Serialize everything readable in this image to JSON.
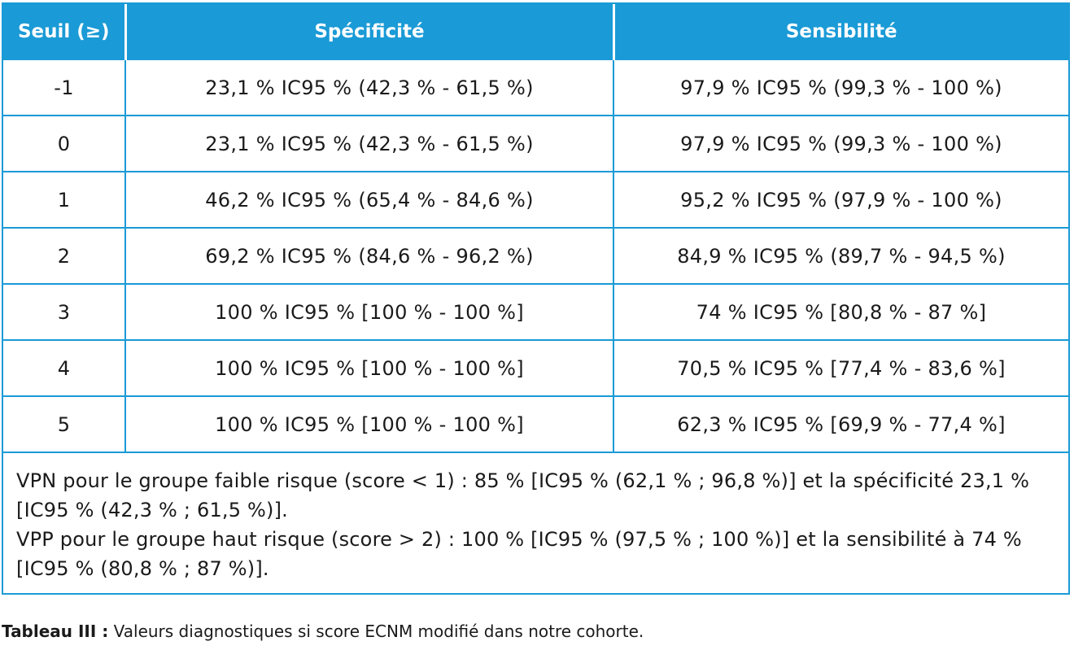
{
  "table": {
    "headers": [
      "Seuil (≥)",
      "Spécificité",
      "Sensibilité"
    ],
    "rows": [
      [
        "-1",
        "23,1 % IC95 % (42,3 % - 61,5 %)",
        "97,9 % IC95 % (99,3 % - 100 %)"
      ],
      [
        "0",
        "23,1 % IC95 % (42,3 % - 61,5 %)",
        "97,9 % IC95 % (99,3 % - 100 %)"
      ],
      [
        "1",
        "46,2 % IC95 % (65,4 % - 84,6 %)",
        "95,2 % IC95 % (97,9 % - 100 %)"
      ],
      [
        "2",
        "69,2 % IC95 % (84,6 % - 96,2 %)",
        "84,9 % IC95 % (89,7 % - 94,5 %)"
      ],
      [
        "3",
        "100 % IC95 % [100 % - 100 %]",
        "74 % IC95 % [80,8 % - 87 %]"
      ],
      [
        "4",
        "100 % IC95 % [100 % - 100 %]",
        "70,5 % IC95 % [77,4 % - 83,6 %]"
      ],
      [
        "5",
        "100 % IC95 % [100 % - 100 %]",
        "62,3 % IC95 % [69,9 % - 77,4 %]"
      ]
    ],
    "notes": [
      "VPN pour le groupe faible risque (score < 1) : 85 % [IC95 % (62,1 % ; 96,8 %)] et la spécificité 23,1 % [IC95 % (42,3 % ; 61,5 %)].",
      "VPP pour le groupe haut risque (score > 2) : 100 % [IC95 % (97,5 % ; 100 %)] et la sensibilité à 74 % [IC95 % (80,8 % ; 87 %)]."
    ]
  },
  "caption": {
    "label": "Tableau III :",
    "text": " Valeurs diagnostiques si score ECNM modifié dans notre cohorte."
  },
  "colors": {
    "header_bg": "#1a9ad6",
    "header_text": "#ffffff",
    "border": "#1a9ad6",
    "body_text": "#1a1a1a"
  }
}
